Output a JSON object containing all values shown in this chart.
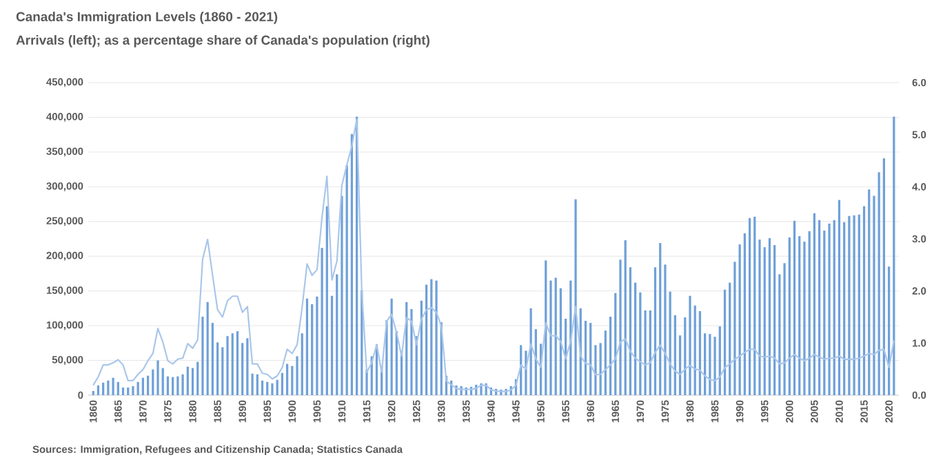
{
  "chart_data": {
    "type": "bar",
    "title": "Canada's Immigration Levels (1860 - 2021)",
    "subtitle": "Arrivals (left); as a percentage share of Canada's population (right)",
    "annotations": [
      "Sources: Immigration, Refugees and Citizenship Canada; Statistics Canada"
    ],
    "x": [
      1860,
      1861,
      1862,
      1863,
      1864,
      1865,
      1866,
      1867,
      1868,
      1869,
      1870,
      1871,
      1872,
      1873,
      1874,
      1875,
      1876,
      1877,
      1878,
      1879,
      1880,
      1881,
      1882,
      1883,
      1884,
      1885,
      1886,
      1887,
      1888,
      1889,
      1890,
      1891,
      1892,
      1893,
      1894,
      1895,
      1896,
      1897,
      1898,
      1899,
      1900,
      1901,
      1902,
      1903,
      1904,
      1905,
      1906,
      1907,
      1908,
      1909,
      1910,
      1911,
      1912,
      1913,
      1914,
      1915,
      1916,
      1917,
      1918,
      1919,
      1920,
      1921,
      1922,
      1923,
      1924,
      1925,
      1926,
      1927,
      1928,
      1929,
      1930,
      1931,
      1932,
      1933,
      1934,
      1935,
      1936,
      1937,
      1938,
      1939,
      1940,
      1941,
      1942,
      1943,
      1944,
      1945,
      1946,
      1947,
      1948,
      1949,
      1950,
      1951,
      1952,
      1953,
      1954,
      1955,
      1956,
      1957,
      1958,
      1959,
      1960,
      1961,
      1962,
      1963,
      1964,
      1965,
      1966,
      1967,
      1968,
      1969,
      1970,
      1971,
      1972,
      1973,
      1974,
      1975,
      1976,
      1977,
      1978,
      1979,
      1980,
      1981,
      1982,
      1983,
      1984,
      1985,
      1986,
      1987,
      1988,
      1989,
      1990,
      1991,
      1992,
      1993,
      1994,
      1995,
      1996,
      1997,
      1998,
      1999,
      2000,
      2001,
      2002,
      2003,
      2004,
      2005,
      2006,
      2007,
      2008,
      2009,
      2010,
      2011,
      2012,
      2013,
      2014,
      2015,
      2016,
      2017,
      2018,
      2019,
      2020,
      2021
    ],
    "series": [
      {
        "color": "#6fa0d8",
        "values": [
          6000,
          14000,
          18000,
          21000,
          25000,
          19000,
          11000,
          11000,
          13000,
          19000,
          25000,
          28000,
          37000,
          50000,
          39000,
          27000,
          26000,
          27000,
          30000,
          41000,
          39000,
          48000,
          113000,
          134000,
          104000,
          76000,
          69000,
          85000,
          89000,
          92000,
          75000,
          82000,
          31000,
          30000,
          21000,
          19000,
          17000,
          22000,
          32000,
          45000,
          42000,
          56000,
          89000,
          139000,
          131000,
          142000,
          212000,
          272000,
          143000,
          174000,
          287000,
          331000,
          376000,
          401000,
          151000,
          37000,
          56000,
          73000,
          42000,
          108000,
          139000,
          92000,
          64000,
          134000,
          124000,
          85000,
          136000,
          159000,
          167000,
          165000,
          105000,
          28000,
          21000,
          14000,
          13000,
          11000,
          12000,
          15000,
          17000,
          17000,
          11000,
          9000,
          8000,
          9000,
          13000,
          23000,
          72000,
          64000,
          125000,
          95000,
          74000,
          194000,
          165000,
          169000,
          154000,
          110000,
          165000,
          282000,
          125000,
          107000,
          104000,
          72000,
          75000,
          93000,
          113000,
          147000,
          195000,
          223000,
          184000,
          162000,
          148000,
          122000,
          122000,
          184000,
          219000,
          188000,
          149000,
          115000,
          86000,
          112000,
          143000,
          129000,
          121000,
          89000,
          88000,
          84000,
          99000,
          152000,
          162000,
          192000,
          217000,
          233000,
          255000,
          257000,
          224000,
          213000,
          226000,
          216000,
          174000,
          190000,
          227000,
          251000,
          229000,
          221000,
          236000,
          262000,
          252000,
          237000,
          247000,
          252000,
          281000,
          249000,
          258000,
          259000,
          260000,
          272000,
          296000,
          287000,
          321000,
          341000,
          185000,
          401000
        ]
      },
      {
        "type": "line",
        "axis": "y2",
        "color": "#a9c6ea",
        "values": [
          0.19,
          0.35,
          0.58,
          0.58,
          0.62,
          0.68,
          0.58,
          0.28,
          0.28,
          0.4,
          0.49,
          0.66,
          0.8,
          1.28,
          1.02,
          0.66,
          0.6,
          0.69,
          0.71,
          0.99,
          0.9,
          1.06,
          2.61,
          2.99,
          2.3,
          1.64,
          1.5,
          1.81,
          1.9,
          1.9,
          1.59,
          1.7,
          0.6,
          0.6,
          0.42,
          0.4,
          0.31,
          0.37,
          0.53,
          0.88,
          0.8,
          0.97,
          1.68,
          2.52,
          2.3,
          2.41,
          3.41,
          4.2,
          2.21,
          2.57,
          4.03,
          4.42,
          4.78,
          5.3,
          2.0,
          0.44,
          0.62,
          0.97,
          0.44,
          1.42,
          1.55,
          1.2,
          0.75,
          1.49,
          1.42,
          0.97,
          1.46,
          1.64,
          1.68,
          1.59,
          1.33,
          0.27,
          0.2,
          0.13,
          0.11,
          0.11,
          0.11,
          0.13,
          0.19,
          0.19,
          0.1,
          0.08,
          0.07,
          0.07,
          0.1,
          0.19,
          0.58,
          0.5,
          0.98,
          0.7,
          0.53,
          1.39,
          1.14,
          1.14,
          1.03,
          0.7,
          1.03,
          1.7,
          0.75,
          0.61,
          0.58,
          0.39,
          0.4,
          0.49,
          0.58,
          0.7,
          1.02,
          1.08,
          0.84,
          0.71,
          0.64,
          0.58,
          0.62,
          0.82,
          0.96,
          0.8,
          0.6,
          0.46,
          0.4,
          0.5,
          0.57,
          0.5,
          0.48,
          0.37,
          0.3,
          0.28,
          0.35,
          0.53,
          0.6,
          0.69,
          0.75,
          0.82,
          0.88,
          0.88,
          0.75,
          0.73,
          0.75,
          0.71,
          0.6,
          0.62,
          0.71,
          0.78,
          0.71,
          0.66,
          0.71,
          0.78,
          0.73,
          0.69,
          0.71,
          0.71,
          0.75,
          0.69,
          0.69,
          0.69,
          0.71,
          0.75,
          0.8,
          0.78,
          0.86,
          0.88,
          0.53,
          1.05
        ]
      }
    ],
    "xlim": [
      1859,
      2022
    ],
    "xticks": [
      1860,
      1865,
      1870,
      1875,
      1880,
      1885,
      1890,
      1895,
      1900,
      1905,
      1910,
      1915,
      1920,
      1925,
      1930,
      1935,
      1940,
      1945,
      1950,
      1955,
      1960,
      1965,
      1970,
      1975,
      1980,
      1985,
      1990,
      1995,
      2000,
      2005,
      2010,
      2015,
      2020
    ],
    "ylim": [
      0,
      450000
    ],
    "yticks": [
      0,
      {
        "value": 50000,
        "label": "50,000"
      },
      {
        "value": 100000,
        "label": "100,000"
      },
      {
        "value": 150000,
        "label": "150,000"
      },
      {
        "value": 200000,
        "label": "200,000"
      },
      {
        "value": 250000,
        "label": "250,000"
      },
      {
        "value": 300000,
        "label": "300,000"
      },
      {
        "value": 350000,
        "label": "350,000"
      },
      {
        "value": 400000,
        "label": "400,000"
      },
      {
        "value": 450000,
        "label": "450,000"
      }
    ],
    "y2lim": [
      0,
      6
    ],
    "y2ticks": [
      {
        "value": 0,
        "label": "0.0"
      },
      {
        "value": 1,
        "label": "1.0"
      },
      {
        "value": 2,
        "label": "2.0"
      },
      {
        "value": 3,
        "label": "3.0"
      },
      {
        "value": 4,
        "label": "4.0"
      },
      {
        "value": 5,
        "label": "5.0"
      },
      {
        "value": 6,
        "label": "6.0"
      }
    ],
    "grid": "y"
  }
}
